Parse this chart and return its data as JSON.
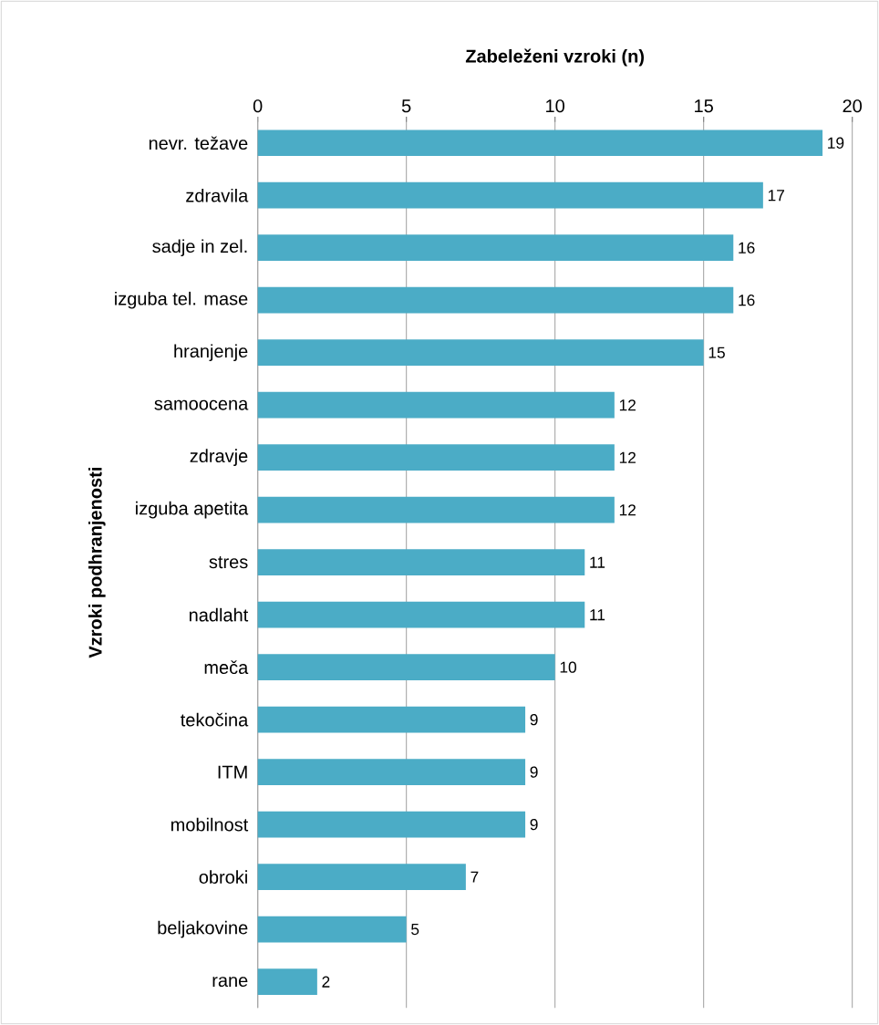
{
  "chart_data": {
    "type": "bar",
    "orientation": "horizontal",
    "xlabel": "Zabeleženi vzroki (n)",
    "ylabel": "Vzroki podhranjenosti",
    "categories": [
      "nevr. težave",
      "zdravila",
      "sadje in zel.",
      "izguba tel. mase",
      "hranjenje",
      "samoocena",
      "zdravje",
      "izguba apetita",
      "stres",
      "nadlaht",
      "meča",
      "tekočina",
      "ITM",
      "mobilnost",
      "obroki",
      "beljakovine",
      "rane"
    ],
    "values": [
      19,
      17,
      16,
      16,
      15,
      12,
      12,
      12,
      11,
      11,
      10,
      9,
      9,
      9,
      7,
      5,
      2
    ],
    "color": "#4bacc6",
    "xlim": [
      0,
      20
    ],
    "xticks": [
      0,
      5,
      10,
      15,
      20
    ],
    "grid": "x",
    "data_labels": true
  }
}
